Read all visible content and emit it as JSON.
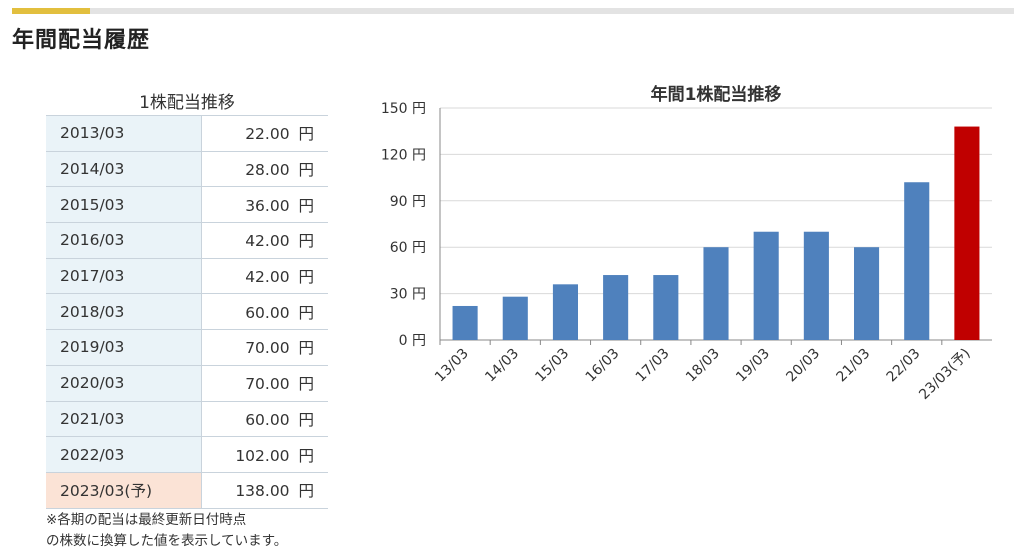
{
  "page": {
    "title": "年間配当履歴"
  },
  "table": {
    "caption": "1株配当推移",
    "unit": "円",
    "rows": [
      {
        "period": "2013/03",
        "amount": "22.00",
        "forecast": false
      },
      {
        "period": "2014/03",
        "amount": "28.00",
        "forecast": false
      },
      {
        "period": "2015/03",
        "amount": "36.00",
        "forecast": false
      },
      {
        "period": "2016/03",
        "amount": "42.00",
        "forecast": false
      },
      {
        "period": "2017/03",
        "amount": "42.00",
        "forecast": false
      },
      {
        "period": "2018/03",
        "amount": "60.00",
        "forecast": false
      },
      {
        "period": "2019/03",
        "amount": "70.00",
        "forecast": false
      },
      {
        "period": "2020/03",
        "amount": "70.00",
        "forecast": false
      },
      {
        "period": "2021/03",
        "amount": "60.00",
        "forecast": false
      },
      {
        "period": "2022/03",
        "amount": "102.00",
        "forecast": false
      },
      {
        "period": "2023/03(予)",
        "amount": "138.00",
        "forecast": true
      }
    ]
  },
  "note": {
    "line1": "※各期の配当は最終更新日付時点",
    "line2": "の株数に換算した値を表示しています。"
  },
  "colors": {
    "bar": "#4f81bd",
    "forecast_bar": "#c00000",
    "accent": "#e2bf3e",
    "table_label_bg": "#eaf3f8",
    "table_forecast_bg": "#fbe3d6"
  },
  "chart_data": {
    "type": "bar",
    "title": "年間1株配当推移",
    "categories": [
      "13/03",
      "14/03",
      "15/03",
      "16/03",
      "17/03",
      "18/03",
      "19/03",
      "20/03",
      "21/03",
      "22/03",
      "23/03(予)"
    ],
    "values": [
      22,
      28,
      36,
      42,
      42,
      60,
      70,
      70,
      60,
      102,
      138
    ],
    "forecast": [
      false,
      false,
      false,
      false,
      false,
      false,
      false,
      false,
      false,
      false,
      true
    ],
    "ylim": [
      0,
      150
    ],
    "yticks": [
      0,
      30,
      60,
      90,
      120,
      150
    ],
    "ytick_labels": [
      "0 円",
      "30 円",
      "60 円",
      "90 円",
      "120 円",
      "150 円"
    ],
    "grid": true,
    "xlabel": "",
    "ylabel": ""
  }
}
